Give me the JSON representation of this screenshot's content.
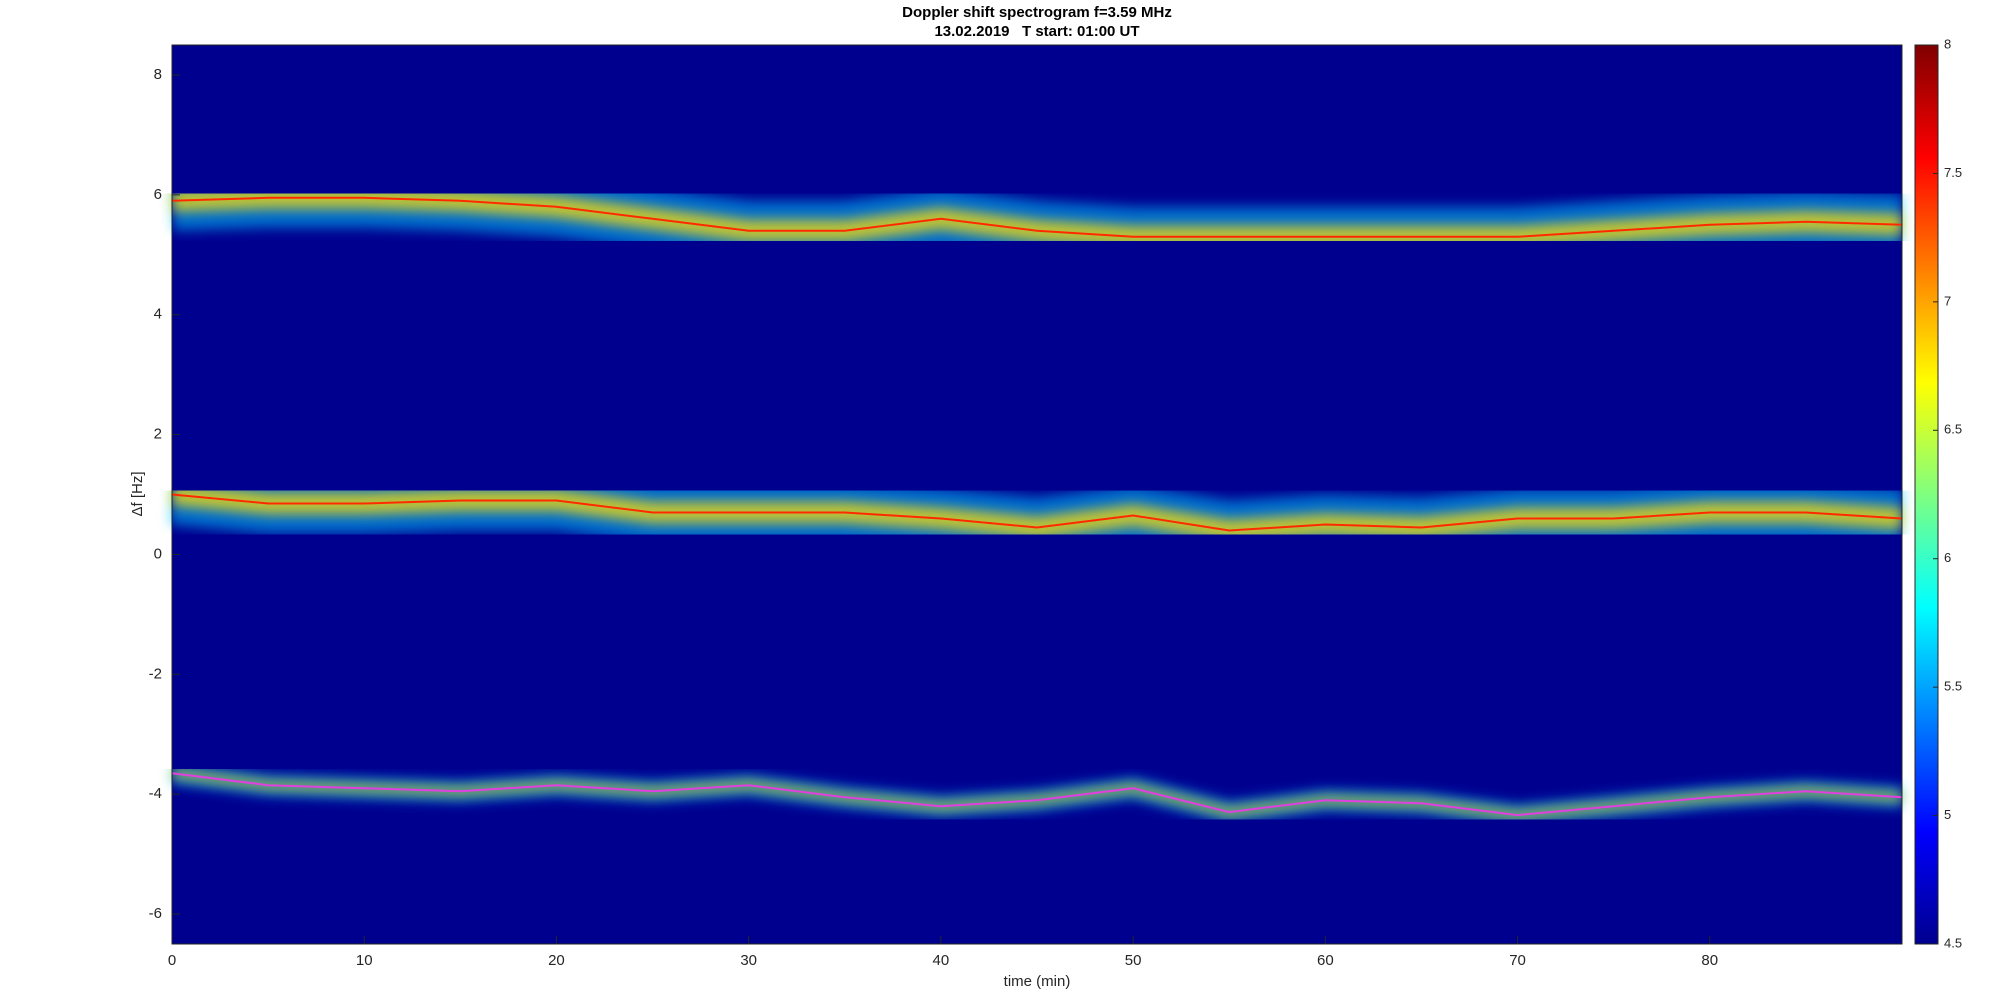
{
  "chart_data": {
    "type": "spectrogram",
    "title": "Doppler shift spectrogram f=3.59 MHz",
    "subtitle": "13.02.2019   T start: 01:00 UT",
    "xlabel": "time (min)",
    "ylabel": "Δf [Hz]",
    "x": [
      0,
      5,
      10,
      15,
      20,
      25,
      30,
      35,
      40,
      45,
      50,
      55,
      60,
      65,
      70,
      75,
      80,
      85,
      90
    ],
    "series": [
      {
        "color": "#ff2a00",
        "values": [
          5.9,
          5.95,
          5.95,
          5.9,
          5.8,
          5.6,
          5.4,
          5.4,
          5.6,
          5.4,
          5.3,
          5.3,
          5.3,
          5.3,
          5.3,
          5.4,
          5.5,
          5.55,
          5.5
        ]
      },
      {
        "color": "#ff2a00",
        "values": [
          1.0,
          0.85,
          0.85,
          0.9,
          0.9,
          0.7,
          0.7,
          0.7,
          0.6,
          0.45,
          0.65,
          0.4,
          0.5,
          0.45,
          0.6,
          0.6,
          0.7,
          0.7,
          0.6
        ]
      },
      {
        "color": "#e040e0",
        "values": [
          -3.65,
          -3.85,
          -3.9,
          -3.95,
          -3.85,
          -3.95,
          -3.85,
          -4.05,
          -4.2,
          -4.1,
          -3.9,
          -4.3,
          -4.1,
          -4.15,
          -4.35,
          -4.2,
          -4.05,
          -3.95,
          -4.05
        ]
      }
    ],
    "xlim": [
      0,
      90
    ],
    "xticks": [
      0,
      10,
      20,
      30,
      40,
      50,
      60,
      70,
      80
    ],
    "ylim": [
      -6.5,
      8.5
    ],
    "yticks": [
      -6,
      -4,
      -2,
      0,
      2,
      4,
      6,
      8
    ],
    "colormap": "jet",
    "clim": [
      4.5,
      8
    ],
    "cticks": [
      4.5,
      5,
      5.5,
      6,
      6.5,
      7,
      7.5,
      8
    ]
  }
}
